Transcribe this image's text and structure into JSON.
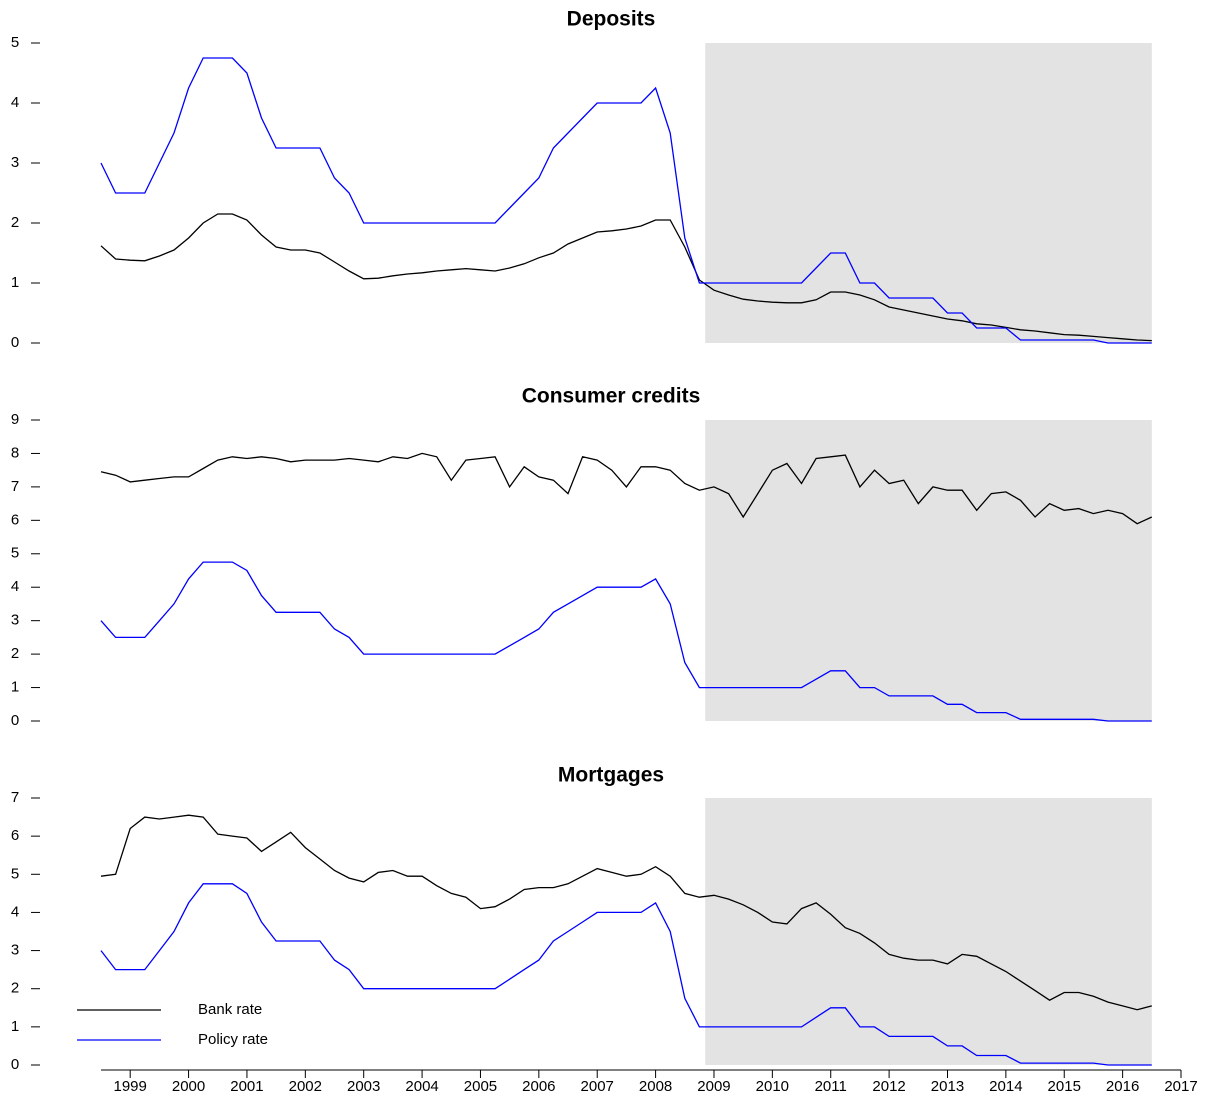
{
  "chart_data": [
    {
      "type": "line",
      "title": "Deposits",
      "x": [
        1998.5,
        1998.75,
        1999,
        1999.25,
        1999.5,
        1999.75,
        2000,
        2000.25,
        2000.5,
        2000.75,
        2001,
        2001.25,
        2001.5,
        2001.75,
        2002,
        2002.25,
        2002.5,
        2002.75,
        2003,
        2003.25,
        2003.5,
        2003.75,
        2004,
        2004.25,
        2004.5,
        2004.75,
        2005,
        2005.25,
        2005.5,
        2005.75,
        2006,
        2006.25,
        2006.5,
        2006.75,
        2007,
        2007.25,
        2007.5,
        2007.75,
        2008,
        2008.25,
        2008.5,
        2008.75,
        2009,
        2009.25,
        2009.5,
        2009.75,
        2010,
        2010.25,
        2010.5,
        2010.75,
        2011,
        2011.25,
        2011.5,
        2011.75,
        2012,
        2012.25,
        2012.5,
        2012.75,
        2013,
        2013.25,
        2013.5,
        2013.75,
        2014,
        2014.25,
        2014.5,
        2014.75,
        2015,
        2015.25,
        2015.5,
        2015.75,
        2016,
        2016.25,
        2016.5
      ],
      "xlim": [
        1998.5,
        2017
      ],
      "ylim": [
        0,
        5
      ],
      "yticks": [
        0,
        1,
        2,
        3,
        4,
        5
      ],
      "shade": [
        2008.85,
        2016.5
      ],
      "series": [
        {
          "color": "#000000",
          "values": [
            1.62,
            1.4,
            1.38,
            1.37,
            1.45,
            1.55,
            1.75,
            2.0,
            2.15,
            2.15,
            2.05,
            1.8,
            1.6,
            1.55,
            1.55,
            1.5,
            1.35,
            1.2,
            1.07,
            1.08,
            1.12,
            1.15,
            1.17,
            1.2,
            1.22,
            1.24,
            1.22,
            1.2,
            1.25,
            1.32,
            1.42,
            1.5,
            1.65,
            1.75,
            1.85,
            1.87,
            1.9,
            1.95,
            2.05,
            2.05,
            1.6,
            1.05,
            0.88,
            0.8,
            0.73,
            0.7,
            0.68,
            0.67,
            0.67,
            0.72,
            0.85,
            0.85,
            0.8,
            0.72,
            0.6,
            0.55,
            0.5,
            0.45,
            0.4,
            0.37,
            0.32,
            0.3,
            0.26,
            0.22,
            0.2,
            0.17,
            0.14,
            0.13,
            0.11,
            0.09,
            0.07,
            0.05,
            0.04
          ]
        },
        {
          "color": "#0000ff",
          "values": [
            3,
            2.5,
            2.5,
            2.5,
            3,
            3.5,
            4.25,
            4.75,
            4.75,
            4.75,
            4.5,
            3.75,
            3.25,
            3.25,
            3.25,
            3.25,
            2.75,
            2.5,
            2,
            2,
            2,
            2,
            2,
            2,
            2,
            2,
            2,
            2,
            2.25,
            2.5,
            2.75,
            3.25,
            3.5,
            3.75,
            4,
            4,
            4,
            4,
            4.25,
            3.5,
            1.75,
            1,
            1,
            1,
            1,
            1,
            1,
            1,
            1,
            1.25,
            1.5,
            1.5,
            1,
            1,
            0.75,
            0.75,
            0.75,
            0.75,
            0.5,
            0.5,
            0.25,
            0.25,
            0.25,
            0.05,
            0.05,
            0.05,
            0.05,
            0.05,
            0.05,
            0,
            0,
            0,
            0
          ]
        }
      ]
    },
    {
      "type": "line",
      "title": "Consumer credits",
      "x": [
        1998.5,
        1998.75,
        1999,
        1999.25,
        1999.5,
        1999.75,
        2000,
        2000.25,
        2000.5,
        2000.75,
        2001,
        2001.25,
        2001.5,
        2001.75,
        2002,
        2002.25,
        2002.5,
        2002.75,
        2003,
        2003.25,
        2003.5,
        2003.75,
        2004,
        2004.25,
        2004.5,
        2004.75,
        2005,
        2005.25,
        2005.5,
        2005.75,
        2006,
        2006.25,
        2006.5,
        2006.75,
        2007,
        2007.25,
        2007.5,
        2007.75,
        2008,
        2008.25,
        2008.5,
        2008.75,
        2009,
        2009.25,
        2009.5,
        2009.75,
        2010,
        2010.25,
        2010.5,
        2010.75,
        2011,
        2011.25,
        2011.5,
        2011.75,
        2012,
        2012.25,
        2012.5,
        2012.75,
        2013,
        2013.25,
        2013.5,
        2013.75,
        2014,
        2014.25,
        2014.5,
        2014.75,
        2015,
        2015.25,
        2015.5,
        2015.75,
        2016,
        2016.25,
        2016.5
      ],
      "xlim": [
        1998.5,
        2017
      ],
      "ylim": [
        0,
        9
      ],
      "yticks": [
        0,
        1,
        2,
        3,
        4,
        5,
        6,
        7,
        8,
        9
      ],
      "shade": [
        2008.85,
        2016.5
      ],
      "series": [
        {
          "color": "#000000",
          "values": [
            7.45,
            7.35,
            7.15,
            7.2,
            7.25,
            7.3,
            7.3,
            7.55,
            7.8,
            7.9,
            7.85,
            7.9,
            7.85,
            7.75,
            7.8,
            7.8,
            7.8,
            7.85,
            7.8,
            7.75,
            7.9,
            7.85,
            8.0,
            7.9,
            7.2,
            7.8,
            7.85,
            7.9,
            7.0,
            7.6,
            7.3,
            7.2,
            6.8,
            7.9,
            7.8,
            7.5,
            7.0,
            7.6,
            7.6,
            7.5,
            7.1,
            6.9,
            7.0,
            6.8,
            6.1,
            6.8,
            7.5,
            7.7,
            7.1,
            7.85,
            7.9,
            7.95,
            7.0,
            7.5,
            7.1,
            7.2,
            6.5,
            7.0,
            6.9,
            6.9,
            6.3,
            6.8,
            6.85,
            6.6,
            6.1,
            6.5,
            6.3,
            6.35,
            6.2,
            6.3,
            6.2,
            5.9,
            6.1
          ]
        },
        {
          "color": "#0000ff",
          "values": [
            3,
            2.5,
            2.5,
            2.5,
            3,
            3.5,
            4.25,
            4.75,
            4.75,
            4.75,
            4.5,
            3.75,
            3.25,
            3.25,
            3.25,
            3.25,
            2.75,
            2.5,
            2,
            2,
            2,
            2,
            2,
            2,
            2,
            2,
            2,
            2,
            2.25,
            2.5,
            2.75,
            3.25,
            3.5,
            3.75,
            4,
            4,
            4,
            4,
            4.25,
            3.5,
            1.75,
            1,
            1,
            1,
            1,
            1,
            1,
            1,
            1,
            1.25,
            1.5,
            1.5,
            1,
            1,
            0.75,
            0.75,
            0.75,
            0.75,
            0.5,
            0.5,
            0.25,
            0.25,
            0.25,
            0.05,
            0.05,
            0.05,
            0.05,
            0.05,
            0.05,
            0,
            0,
            0,
            0
          ]
        }
      ]
    },
    {
      "type": "line",
      "title": "Mortgages",
      "x": [
        1998.5,
        1998.75,
        1999,
        1999.25,
        1999.5,
        1999.75,
        2000,
        2000.25,
        2000.5,
        2000.75,
        2001,
        2001.25,
        2001.5,
        2001.75,
        2002,
        2002.25,
        2002.5,
        2002.75,
        2003,
        2003.25,
        2003.5,
        2003.75,
        2004,
        2004.25,
        2004.5,
        2004.75,
        2005,
        2005.25,
        2005.5,
        2005.75,
        2006,
        2006.25,
        2006.5,
        2006.75,
        2007,
        2007.25,
        2007.5,
        2007.75,
        2008,
        2008.25,
        2008.5,
        2008.75,
        2009,
        2009.25,
        2009.5,
        2009.75,
        2010,
        2010.25,
        2010.5,
        2010.75,
        2011,
        2011.25,
        2011.5,
        2011.75,
        2012,
        2012.25,
        2012.5,
        2012.75,
        2013,
        2013.25,
        2013.5,
        2013.75,
        2014,
        2014.25,
        2014.5,
        2014.75,
        2015,
        2015.25,
        2015.5,
        2015.75,
        2016,
        2016.25,
        2016.5
      ],
      "xlim": [
        1998.5,
        2017
      ],
      "xticks": [
        1999,
        2000,
        2001,
        2002,
        2003,
        2004,
        2005,
        2006,
        2007,
        2008,
        2009,
        2010,
        2011,
        2012,
        2013,
        2014,
        2015,
        2016,
        2017
      ],
      "ylim": [
        0,
        7
      ],
      "yticks": [
        0,
        1,
        2,
        3,
        4,
        5,
        6,
        7
      ],
      "shade": [
        2008.85,
        2016.5
      ],
      "legend": "lower left",
      "series": [
        {
          "name": "Bank rate",
          "color": "#000000",
          "values": [
            4.95,
            5.0,
            6.2,
            6.5,
            6.45,
            6.5,
            6.55,
            6.5,
            6.05,
            6.0,
            5.95,
            5.6,
            5.85,
            6.1,
            5.7,
            5.4,
            5.1,
            4.9,
            4.8,
            5.05,
            5.1,
            4.95,
            4.95,
            4.7,
            4.5,
            4.4,
            4.1,
            4.15,
            4.35,
            4.6,
            4.65,
            4.65,
            4.75,
            4.95,
            5.15,
            5.05,
            4.95,
            5.0,
            5.2,
            4.95,
            4.5,
            4.4,
            4.45,
            4.35,
            4.2,
            4.0,
            3.75,
            3.7,
            4.1,
            4.25,
            3.95,
            3.6,
            3.45,
            3.2,
            2.9,
            2.8,
            2.75,
            2.75,
            2.65,
            2.9,
            2.85,
            2.65,
            2.45,
            2.2,
            1.95,
            1.7,
            1.9,
            1.9,
            1.8,
            1.65,
            1.55,
            1.45,
            1.55
          ]
        },
        {
          "name": "Policy rate",
          "color": "#0000ff",
          "values": [
            3,
            2.5,
            2.5,
            2.5,
            3,
            3.5,
            4.25,
            4.75,
            4.75,
            4.75,
            4.5,
            3.75,
            3.25,
            3.25,
            3.25,
            3.25,
            2.75,
            2.5,
            2,
            2,
            2,
            2,
            2,
            2,
            2,
            2,
            2,
            2,
            2.25,
            2.5,
            2.75,
            3.25,
            3.5,
            3.75,
            4,
            4,
            4,
            4,
            4.25,
            3.5,
            1.75,
            1,
            1,
            1,
            1,
            1,
            1,
            1,
            1,
            1.25,
            1.5,
            1.5,
            1,
            1,
            0.75,
            0.75,
            0.75,
            0.75,
            0.5,
            0.5,
            0.25,
            0.25,
            0.25,
            0.05,
            0.05,
            0.05,
            0.05,
            0.05,
            0.05,
            0,
            0,
            0,
            0
          ]
        }
      ]
    }
  ]
}
